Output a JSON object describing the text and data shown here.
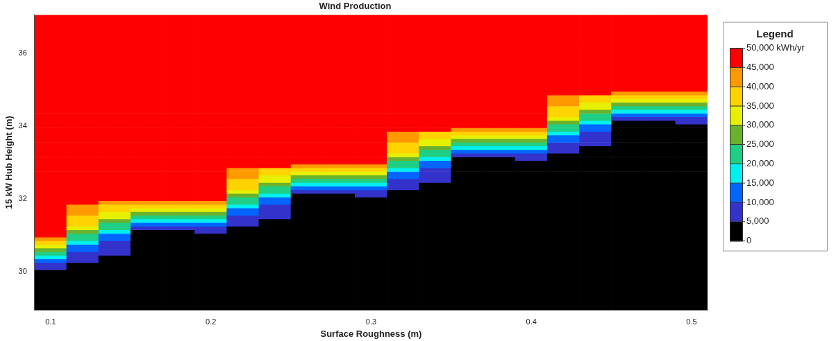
{
  "chart_data": {
    "type": "heatmap",
    "title": "Wind Production",
    "xlabel": "Surface Roughness (m)",
    "ylabel": "15 kW Hub Height (m)",
    "clabel": "Legend",
    "categories": [
      "0.1",
      null,
      null,
      null,
      null,
      "0.2",
      null,
      null,
      null,
      null,
      "0.3",
      null,
      null,
      null,
      null,
      "0.4",
      null,
      null,
      null,
      null,
      "0.5"
    ],
    "y_categories": [
      null,
      null,
      null,
      null,
      null,
      null,
      null,
      null,
      null,
      null,
      "36",
      null,
      null,
      null,
      null,
      null,
      null,
      null,
      null,
      null,
      null,
      null,
      null,
      null,
      null,
      null,
      null,
      null,
      null,
      null,
      "34",
      null,
      null,
      null,
      null,
      null,
      null,
      null,
      null,
      null,
      null,
      null,
      null,
      null,
      null,
      null,
      null,
      null,
      null,
      null,
      "32",
      null,
      null,
      null,
      null,
      null,
      null,
      null,
      null,
      null,
      null,
      null,
      null,
      null,
      null,
      null,
      null,
      null,
      null,
      null,
      "30",
      null,
      null,
      null,
      null,
      null,
      null,
      null,
      null,
      null,
      null
    ],
    "clim": [
      0,
      50000
    ],
    "cticks": [
      0,
      {
        "value": 5000,
        "label": "5,000"
      },
      {
        "value": 10000,
        "label": "10,000"
      },
      {
        "value": 15000,
        "label": "15,000"
      },
      {
        "value": 20000,
        "label": "20,000"
      },
      {
        "value": 25000,
        "label": "25,000"
      },
      {
        "value": 30000,
        "label": "30,000"
      },
      {
        "value": 35000,
        "label": "35,000"
      },
      {
        "value": 40000,
        "label": "40,000"
      },
      {
        "value": 45000,
        "label": "45,000"
      },
      {
        "value": 50000,
        "label": "50,000 kWh/yr"
      }
    ],
    "colors": [
      "#000000",
      "#3333cc",
      "#0066ff",
      "#00f0f0",
      "#1fcf85",
      "#6ab22e",
      "#e6f000",
      "#ffd200",
      "#ff9900",
      "#ff0000"
    ],
    "cells": [
      [
        50000,
        50000,
        50000,
        50000,
        50000,
        50000,
        50000,
        50000,
        50000,
        50000,
        50000,
        50000,
        50000,
        50000,
        50000,
        50000,
        50000,
        50000,
        50000,
        50000,
        50000
      ],
      [
        50000,
        50000,
        50000,
        50000,
        50000,
        50000,
        50000,
        50000,
        50000,
        50000,
        50000,
        50000,
        50000,
        50000,
        50000,
        50000,
        50000,
        50000,
        50000,
        50000,
        50000
      ],
      [
        50000,
        50000,
        50000,
        50000,
        50000,
        50000,
        50000,
        50000,
        50000,
        50000,
        50000,
        50000,
        50000,
        50000,
        50000,
        50000,
        50000,
        50000,
        50000,
        50000,
        50000
      ],
      [
        50000,
        50000,
        50000,
        50000,
        50000,
        50000,
        50000,
        50000,
        50000,
        50000,
        50000,
        50000,
        50000,
        50000,
        50000,
        50000,
        50000,
        50000,
        50000,
        50000,
        50000
      ],
      [
        50000,
        50000,
        50000,
        50000,
        50000,
        50000,
        50000,
        50000,
        50000,
        50000,
        50000,
        50000,
        50000,
        50000,
        50000,
        50000,
        50000,
        50000,
        50000,
        50000,
        50000
      ],
      [
        50000,
        50000,
        50000,
        50000,
        50000,
        50000,
        50000,
        50000,
        50000,
        50000,
        50000,
        50000,
        50000,
        50000,
        50000,
        50000,
        50000,
        50000,
        50000,
        50000,
        50000
      ],
      [
        50000,
        50000,
        50000,
        50000,
        50000,
        50000,
        50000,
        50000,
        50000,
        50000,
        50000,
        50000,
        50000,
        50000,
        50000,
        50000,
        50000,
        50000,
        50000,
        50000,
        50000
      ],
      [
        50000,
        50000,
        50000,
        50000,
        50000,
        50000,
        50000,
        50000,
        50000,
        50000,
        50000,
        50000,
        50000,
        50000,
        50000,
        50000,
        50000,
        50000,
        50000,
        50000,
        50000
      ],
      [
        50000,
        50000,
        50000,
        50000,
        50000,
        50000,
        50000,
        50000,
        50000,
        50000,
        50000,
        50000,
        50000,
        50000,
        50000,
        50000,
        50000,
        50000,
        50000,
        50000,
        50000
      ],
      [
        50000,
        50000,
        50000,
        50000,
        50000,
        50000,
        50000,
        50000,
        50000,
        50000,
        50000,
        50000,
        50000,
        50000,
        50000,
        50000,
        50000,
        50000,
        50000,
        50000,
        50000
      ],
      [
        50000,
        50000,
        50000,
        50000,
        50000,
        50000,
        50000,
        50000,
        50000,
        50000,
        50000,
        50000,
        50000,
        50000,
        50000,
        50000,
        50000,
        50000,
        50000,
        50000,
        50000
      ],
      [
        50000,
        50000,
        50000,
        50000,
        50000,
        50000,
        50000,
        50000,
        50000,
        50000,
        50000,
        50000,
        50000,
        50000,
        50000,
        50000,
        50000,
        50000,
        50000,
        50000,
        50000
      ],
      [
        50000,
        50000,
        50000,
        50000,
        50000,
        50000,
        50000,
        50000,
        50000,
        50000,
        50000,
        50000,
        50000,
        50000,
        50000,
        50000,
        50000,
        50000,
        50000,
        50000,
        50000
      ],
      [
        50000,
        50000,
        50000,
        50000,
        50000,
        50000,
        50000,
        50000,
        50000,
        50000,
        50000,
        50000,
        50000,
        50000,
        50000,
        50000,
        50000,
        50000,
        50000,
        50000,
        50000
      ],
      [
        50000,
        50000,
        50000,
        50000,
        50000,
        50000,
        50000,
        50000,
        50000,
        50000,
        50000,
        50000,
        50000,
        50000,
        50000,
        50000,
        50000,
        50000,
        50000,
        50000,
        50000
      ],
      [
        50000,
        50000,
        50000,
        50000,
        50000,
        50000,
        50000,
        50000,
        50000,
        50000,
        50000,
        50000,
        50000,
        50000,
        50000,
        50000,
        50000,
        50000,
        50000,
        50000,
        50000
      ],
      [
        50000,
        50000,
        50000,
        50000,
        50000,
        50000,
        50000,
        50000,
        50000,
        50000,
        50000,
        50000,
        50000,
        50000,
        50000,
        50000,
        50000,
        50000,
        50000,
        50000,
        50000
      ],
      [
        50000,
        50000,
        50000,
        50000,
        50000,
        50000,
        50000,
        50000,
        50000,
        50000,
        50000,
        50000,
        50000,
        50000,
        50000,
        50000,
        50000,
        50000,
        50000,
        50000,
        50000
      ],
      [
        50000,
        50000,
        50000,
        50000,
        50000,
        50000,
        50000,
        50000,
        50000,
        50000,
        50000,
        50000,
        50000,
        50000,
        50000,
        50000,
        50000,
        50000,
        50000,
        50000,
        50000
      ],
      [
        50000,
        50000,
        50000,
        50000,
        50000,
        50000,
        50000,
        50000,
        50000,
        50000,
        50000,
        50000,
        50000,
        50000,
        50000,
        50000,
        50000,
        50000,
        50000,
        50000,
        50000
      ],
      [
        50000,
        50000,
        50000,
        50000,
        50000,
        50000,
        50000,
        50000,
        50000,
        50000,
        50000,
        50000,
        50000,
        50000,
        50000,
        50000,
        50000,
        50000,
        50000,
        50000,
        50000
      ],
      [
        50000,
        50000,
        50000,
        50000,
        50000,
        50000,
        50000,
        50000,
        50000,
        50000,
        50000,
        50000,
        50000,
        50000,
        50000,
        50000,
        50000,
        50000,
        42500,
        42500,
        42500
      ],
      [
        50000,
        50000,
        50000,
        50000,
        50000,
        50000,
        50000,
        50000,
        50000,
        50000,
        50000,
        50000,
        50000,
        50000,
        50000,
        50000,
        42500,
        37500,
        37500,
        37500,
        37500
      ],
      [
        50000,
        50000,
        50000,
        50000,
        50000,
        50000,
        50000,
        50000,
        50000,
        50000,
        50000,
        50000,
        50000,
        50000,
        50000,
        50000,
        42500,
        37500,
        32500,
        32500,
        32500
      ],
      [
        50000,
        50000,
        50000,
        50000,
        50000,
        50000,
        50000,
        50000,
        50000,
        50000,
        50000,
        50000,
        50000,
        50000,
        50000,
        50000,
        42500,
        32500,
        27500,
        27500,
        27500
      ],
      [
        50000,
        50000,
        50000,
        50000,
        50000,
        50000,
        50000,
        50000,
        50000,
        50000,
        50000,
        50000,
        50000,
        50000,
        50000,
        50000,
        37500,
        32500,
        22500,
        22500,
        22500
      ],
      [
        50000,
        50000,
        50000,
        50000,
        50000,
        50000,
        50000,
        50000,
        50000,
        50000,
        50000,
        50000,
        50000,
        50000,
        50000,
        50000,
        37500,
        27500,
        17500,
        17500,
        17500
      ],
      [
        50000,
        50000,
        50000,
        50000,
        50000,
        50000,
        50000,
        50000,
        50000,
        50000,
        50000,
        50000,
        50000,
        50000,
        50000,
        50000,
        37500,
        22500,
        12500,
        12500,
        12500
      ],
      [
        50000,
        50000,
        50000,
        50000,
        50000,
        50000,
        50000,
        50000,
        50000,
        50000,
        50000,
        50000,
        50000,
        50000,
        50000,
        50000,
        32500,
        22500,
        7500,
        7500,
        7500
      ],
      [
        50000,
        50000,
        50000,
        50000,
        50000,
        50000,
        50000,
        50000,
        50000,
        50000,
        50000,
        50000,
        50000,
        50000,
        50000,
        50000,
        27500,
        17500,
        0,
        0,
        7500
      ],
      [
        50000,
        50000,
        50000,
        50000,
        50000,
        50000,
        50000,
        50000,
        50000,
        50000,
        50000,
        50000,
        50000,
        50000,
        50000,
        50000,
        22500,
        12500,
        0,
        0,
        0
      ],
      [
        50000,
        50000,
        50000,
        50000,
        50000,
        50000,
        50000,
        50000,
        50000,
        50000,
        50000,
        50000,
        50000,
        42500,
        42500,
        42500,
        22500,
        12500,
        0,
        0,
        0
      ],
      [
        50000,
        50000,
        50000,
        50000,
        50000,
        50000,
        50000,
        50000,
        50000,
        50000,
        50000,
        42500,
        37500,
        37500,
        37500,
        37500,
        17500,
        7500,
        0,
        0,
        0
      ],
      [
        50000,
        50000,
        50000,
        50000,
        50000,
        50000,
        50000,
        50000,
        50000,
        50000,
        50000,
        42500,
        37500,
        32500,
        32500,
        32500,
        12500,
        7500,
        0,
        0,
        0
      ],
      [
        50000,
        50000,
        50000,
        50000,
        50000,
        50000,
        50000,
        50000,
        50000,
        50000,
        50000,
        42500,
        32500,
        27500,
        27500,
        27500,
        12500,
        7500,
        0,
        0,
        0
      ],
      [
        50000,
        50000,
        50000,
        50000,
        50000,
        50000,
        50000,
        50000,
        50000,
        50000,
        50000,
        37500,
        32500,
        22500,
        22500,
        22500,
        7500,
        7500,
        0,
        0,
        0
      ],
      [
        50000,
        50000,
        50000,
        50000,
        50000,
        50000,
        50000,
        50000,
        50000,
        50000,
        50000,
        37500,
        27500,
        17500,
        17500,
        17500,
        7500,
        0,
        0,
        0,
        0
      ],
      [
        50000,
        50000,
        50000,
        50000,
        50000,
        50000,
        50000,
        50000,
        50000,
        50000,
        50000,
        37500,
        22500,
        12500,
        12500,
        12500,
        7500,
        0,
        0,
        0,
        0
      ],
      [
        50000,
        50000,
        50000,
        50000,
        50000,
        50000,
        50000,
        50000,
        50000,
        50000,
        50000,
        32500,
        22500,
        7500,
        7500,
        7500,
        0,
        0,
        0,
        0,
        0
      ],
      [
        50000,
        50000,
        50000,
        50000,
        50000,
        50000,
        50000,
        50000,
        50000,
        50000,
        50000,
        27500,
        17500,
        0,
        0,
        7500,
        0,
        0,
        0,
        0,
        0
      ],
      [
        50000,
        50000,
        50000,
        50000,
        50000,
        50000,
        50000,
        50000,
        50000,
        50000,
        50000,
        22500,
        12500,
        0,
        0,
        0,
        0,
        0,
        0,
        0,
        0
      ],
      [
        50000,
        50000,
        50000,
        50000,
        50000,
        50000,
        50000,
        50000,
        42500,
        42500,
        42500,
        22500,
        12500,
        0,
        0,
        0,
        0,
        0,
        0,
        0,
        0
      ],
      [
        50000,
        50000,
        50000,
        50000,
        50000,
        50000,
        42500,
        37500,
        37500,
        37500,
        37500,
        17500,
        7500,
        0,
        0,
        0,
        0,
        0,
        0,
        0,
        0
      ],
      [
        50000,
        50000,
        50000,
        50000,
        50000,
        50000,
        42500,
        37500,
        32500,
        32500,
        32500,
        12500,
        7500,
        0,
        0,
        0,
        0,
        0,
        0,
        0,
        0
      ],
      [
        50000,
        50000,
        50000,
        50000,
        50000,
        50000,
        42500,
        32500,
        27500,
        27500,
        27500,
        12500,
        7500,
        0,
        0,
        0,
        0,
        0,
        0,
        0,
        0
      ],
      [
        50000,
        50000,
        50000,
        50000,
        50000,
        50000,
        37500,
        32500,
        22500,
        22500,
        22500,
        7500,
        7500,
        0,
        0,
        0,
        0,
        0,
        0,
        0,
        0
      ],
      [
        50000,
        50000,
        50000,
        50000,
        50000,
        50000,
        37500,
        27500,
        17500,
        17500,
        17500,
        7500,
        0,
        0,
        0,
        0,
        0,
        0,
        0,
        0,
        0
      ],
      [
        50000,
        50000,
        50000,
        50000,
        50000,
        50000,
        37500,
        22500,
        12500,
        12500,
        12500,
        7500,
        0,
        0,
        0,
        0,
        0,
        0,
        0,
        0,
        0
      ],
      [
        50000,
        50000,
        50000,
        50000,
        50000,
        50000,
        32500,
        22500,
        7500,
        7500,
        7500,
        0,
        0,
        0,
        0,
        0,
        0,
        0,
        0,
        0,
        0
      ],
      [
        50000,
        50000,
        50000,
        50000,
        50000,
        50000,
        27500,
        17500,
        0,
        0,
        7500,
        0,
        0,
        0,
        0,
        0,
        0,
        0,
        0,
        0,
        0
      ],
      [
        50000,
        50000,
        50000,
        50000,
        50000,
        50000,
        22500,
        12500,
        0,
        0,
        0,
        0,
        0,
        0,
        0,
        0,
        0,
        0,
        0,
        0,
        0
      ],
      [
        50000,
        50000,
        42500,
        42500,
        42500,
        42500,
        22500,
        12500,
        0,
        0,
        0,
        0,
        0,
        0,
        0,
        0,
        0,
        0,
        0,
        0,
        0
      ],
      [
        50000,
        42500,
        37500,
        37500,
        37500,
        37500,
        17500,
        7500,
        0,
        0,
        0,
        0,
        0,
        0,
        0,
        0,
        0,
        0,
        0,
        0,
        0
      ],
      [
        50000,
        42500,
        37500,
        32500,
        32500,
        32500,
        12500,
        7500,
        0,
        0,
        0,
        0,
        0,
        0,
        0,
        0,
        0,
        0,
        0,
        0,
        0
      ],
      [
        50000,
        42500,
        32500,
        27500,
        27500,
        27500,
        12500,
        7500,
        0,
        0,
        0,
        0,
        0,
        0,
        0,
        0,
        0,
        0,
        0,
        0,
        0
      ],
      [
        50000,
        37500,
        32500,
        22500,
        22500,
        22500,
        7500,
        7500,
        0,
        0,
        0,
        0,
        0,
        0,
        0,
        0,
        0,
        0,
        0,
        0,
        0
      ],
      [
        50000,
        37500,
        27500,
        17500,
        17500,
        17500,
        7500,
        0,
        0,
        0,
        0,
        0,
        0,
        0,
        0,
        0,
        0,
        0,
        0,
        0,
        0
      ],
      [
        50000,
        37500,
        22500,
        12500,
        12500,
        12500,
        7500,
        0,
        0,
        0,
        0,
        0,
        0,
        0,
        0,
        0,
        0,
        0,
        0,
        0,
        0
      ],
      [
        50000,
        32500,
        22500,
        7500,
        7500,
        7500,
        0,
        0,
        0,
        0,
        0,
        0,
        0,
        0,
        0,
        0,
        0,
        0,
        0,
        0,
        0
      ],
      [
        50000,
        27500,
        17500,
        0,
        0,
        7500,
        0,
        0,
        0,
        0,
        0,
        0,
        0,
        0,
        0,
        0,
        0,
        0,
        0,
        0,
        0
      ],
      [
        50000,
        22500,
        12500,
        0,
        0,
        0,
        0,
        0,
        0,
        0,
        0,
        0,
        0,
        0,
        0,
        0,
        0,
        0,
        0,
        0,
        0
      ],
      [
        42500,
        22500,
        12500,
        0,
        0,
        0,
        0,
        0,
        0,
        0,
        0,
        0,
        0,
        0,
        0,
        0,
        0,
        0,
        0,
        0,
        0
      ],
      [
        37500,
        17500,
        7500,
        0,
        0,
        0,
        0,
        0,
        0,
        0,
        0,
        0,
        0,
        0,
        0,
        0,
        0,
        0,
        0,
        0,
        0
      ],
      [
        32500,
        12500,
        7500,
        0,
        0,
        0,
        0,
        0,
        0,
        0,
        0,
        0,
        0,
        0,
        0,
        0,
        0,
        0,
        0,
        0,
        0
      ],
      [
        27500,
        12500,
        7500,
        0,
        0,
        0,
        0,
        0,
        0,
        0,
        0,
        0,
        0,
        0,
        0,
        0,
        0,
        0,
        0,
        0,
        0
      ],
      [
        22500,
        7500,
        7500,
        0,
        0,
        0,
        0,
        0,
        0,
        0,
        0,
        0,
        0,
        0,
        0,
        0,
        0,
        0,
        0,
        0,
        0
      ],
      [
        17500,
        7500,
        0,
        0,
        0,
        0,
        0,
        0,
        0,
        0,
        0,
        0,
        0,
        0,
        0,
        0,
        0,
        0,
        0,
        0,
        0
      ],
      [
        12500,
        7500,
        0,
        0,
        0,
        0,
        0,
        0,
        0,
        0,
        0,
        0,
        0,
        0,
        0,
        0,
        0,
        0,
        0,
        0,
        0
      ],
      [
        7500,
        0,
        0,
        0,
        0,
        0,
        0,
        0,
        0,
        0,
        0,
        0,
        0,
        0,
        0,
        0,
        0,
        0,
        0,
        0,
        0
      ],
      [
        7500,
        0,
        0,
        0,
        0,
        0,
        0,
        0,
        0,
        0,
        0,
        0,
        0,
        0,
        0,
        0,
        0,
        0,
        0,
        0,
        0
      ],
      [
        0,
        0,
        0,
        0,
        0,
        0,
        0,
        0,
        0,
        0,
        0,
        0,
        0,
        0,
        0,
        0,
        0,
        0,
        0,
        0,
        0
      ],
      [
        0,
        0,
        0,
        0,
        0,
        0,
        0,
        0,
        0,
        0,
        0,
        0,
        0,
        0,
        0,
        0,
        0,
        0,
        0,
        0,
        0
      ],
      [
        0,
        0,
        0,
        0,
        0,
        0,
        0,
        0,
        0,
        0,
        0,
        0,
        0,
        0,
        0,
        0,
        0,
        0,
        0,
        0,
        0
      ],
      [
        0,
        0,
        0,
        0,
        0,
        0,
        0,
        0,
        0,
        0,
        0,
        0,
        0,
        0,
        0,
        0,
        0,
        0,
        0,
        0,
        0
      ],
      [
        0,
        0,
        0,
        0,
        0,
        0,
        0,
        0,
        0,
        0,
        0,
        0,
        0,
        0,
        0,
        0,
        0,
        0,
        0,
        0,
        0
      ],
      [
        0,
        0,
        0,
        0,
        0,
        0,
        0,
        0,
        0,
        0,
        0,
        0,
        0,
        0,
        0,
        0,
        0,
        0,
        0,
        0,
        0
      ],
      [
        0,
        0,
        0,
        0,
        0,
        0,
        0,
        0,
        0,
        0,
        0,
        0,
        0,
        0,
        0,
        0,
        0,
        0,
        0,
        0,
        0
      ],
      [
        0,
        0,
        0,
        0,
        0,
        0,
        0,
        0,
        0,
        0,
        0,
        0,
        0,
        0,
        0,
        0,
        0,
        0,
        0,
        0,
        0
      ],
      [
        0,
        0,
        0,
        0,
        0,
        0,
        0,
        0,
        0,
        0,
        0,
        0,
        0,
        0,
        0,
        0,
        0,
        0,
        0,
        0,
        0
      ],
      [
        0,
        0,
        0,
        0,
        0,
        0,
        0,
        0,
        0,
        0,
        0,
        0,
        0,
        0,
        0,
        0,
        0,
        0,
        0,
        0,
        0
      ],
      [
        0,
        0,
        0,
        0,
        0,
        0,
        0,
        0,
        0,
        0,
        0,
        0,
        0,
        0,
        0,
        0,
        0,
        0,
        0,
        0,
        0
      ]
    ]
  }
}
